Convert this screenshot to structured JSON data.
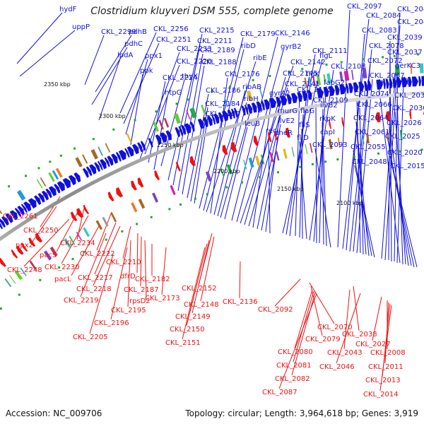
{
  "title": "Clostridium kluyveri DSM 555, complete genome",
  "footer": {
    "accession": "Accession: NC_009706",
    "summary": "Topology: circular; Length: 3,964,618 bp; Genes: 3,919"
  },
  "ticks": [
    "2350 kbp",
    "2300 kbp",
    "2250 kbp",
    "2200 kbp",
    "2150 kbp",
    "2100 kbp"
  ],
  "colors": {
    "forward": "#1010dd",
    "reverse": "#ee1111",
    "backbone": "#9a9a9a"
  },
  "forward_labels": [
    "hydF",
    "uppP",
    "CKL_2299",
    "pdhB",
    "pdhC",
    "lpdA",
    "CKL_2256",
    "CKL_2251",
    "ppx1",
    "ppk",
    "CKL_2233",
    "CKL_2220",
    "CKL_2224",
    "htpG",
    "thyX",
    "CKL_2215",
    "CKL_2211",
    "CKL_2189",
    "CKL_2188",
    "CKL_2186",
    "CKL_2184",
    "CKL_2180",
    "CKL_2179",
    "ribD",
    "ribE",
    "CKL_2176",
    "ribAB",
    "ribH",
    "leuD",
    "leuB",
    "CKL_2146",
    "gyrB2",
    "CKL_2142",
    "CKL_2145",
    "CKL_2141",
    "gyrA2",
    "murG",
    "ilvE2",
    "cheR",
    "recJ",
    "flgL",
    "CKL_2111",
    "flgK",
    "CKL_2115",
    "flaG",
    "fliS",
    "fliD",
    "CKL_2108",
    "fabG2",
    "CKL_2109",
    "ilvB2",
    "rkpK",
    "capI",
    "CKL_2093",
    "CKL_2097",
    "CKL_2084",
    "CKL_2083",
    "CKL_2078",
    "CKL_2072",
    "CKL_2067",
    "CKL_2074",
    "CKL_2066",
    "CKL_2064",
    "CKL_2061",
    "CKL_2055",
    "CKL_2048",
    "CKL_2041",
    "CKL_2040",
    "CKL_2039",
    "CKL_2037",
    "gerKC3",
    "rbr1",
    "CKL_2056",
    "CKL_2031",
    "CKL_2030",
    "CKL_2026",
    "CKL_2025",
    "CKL_2020",
    "CKL_2015"
  ],
  "reverse_labels": [
    "CKL_2261",
    "CKL_2250",
    "ppx2",
    "CKL_2234",
    "pacS",
    "CKL_2248",
    "CKL_2230",
    "pacL",
    "CKL_2222",
    "CKL_2217",
    "CKL_2218",
    "CKL_2219",
    "CKL_2210",
    "dfrD",
    "CKL_2187",
    "rpsD2",
    "CKL_2195",
    "CKL_2196",
    "CKL_2205",
    "CKL_2182",
    "CKL_2173",
    "CKL_2152",
    "CKL_2148",
    "CKL_2149",
    "CKL_2150",
    "CKL_2151",
    "CKL_2136",
    "CKL_2092",
    "CKL_2070",
    "CKL_2079",
    "CKL_2080",
    "CKL_2081",
    "CKL_2082",
    "CKL_2087",
    "CKL_2038",
    "CKL_2043",
    "CKL_2027",
    "CKL_2046",
    "CKL_2008",
    "CKL_2011",
    "CKL_2013",
    "CKL_2014"
  ]
}
